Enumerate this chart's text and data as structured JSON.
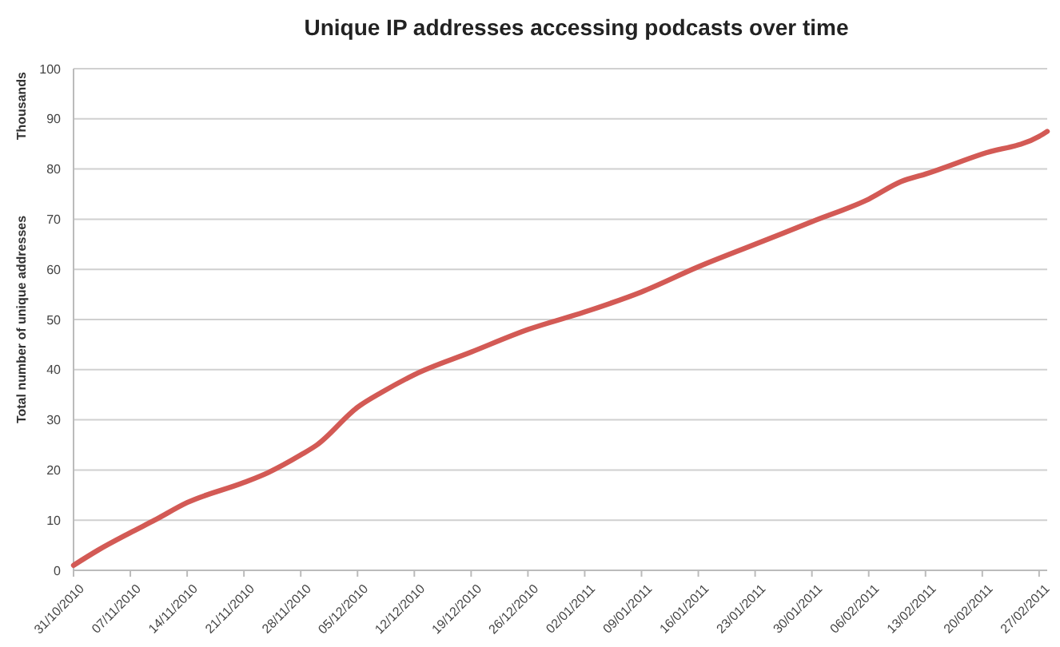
{
  "chart_data": {
    "type": "line",
    "title": "Unique IP addresses accessing podcasts over time",
    "ylabel": "Total number of unique addresses",
    "annotations": [
      "Thousands"
    ],
    "x": [
      "2010-10-31",
      "2010-11-03",
      "2010-11-07",
      "2010-11-10",
      "2010-11-14",
      "2010-11-21",
      "2010-11-24",
      "2010-11-28",
      "2010-11-30",
      "2010-12-05",
      "2010-12-08",
      "2010-12-12",
      "2010-12-19",
      "2010-12-26",
      "2011-01-02",
      "2011-01-09",
      "2011-01-16",
      "2011-01-23",
      "2011-01-30",
      "2011-02-06",
      "2011-02-10",
      "2011-02-13",
      "2011-02-20",
      "2011-02-27",
      "2011-02-28"
    ],
    "series": [
      {
        "color": "#d35a55",
        "values": [
          1,
          4,
          7.5,
          10,
          13.5,
          17.5,
          19.5,
          23,
          25,
          32.5,
          35.5,
          39,
          43.5,
          48,
          51.5,
          55.5,
          60.5,
          65,
          69.5,
          74,
          77.5,
          79,
          83,
          86.5,
          87.5
        ]
      }
    ],
    "xlim": [
      "2010-10-31",
      "2011-02-28"
    ],
    "xticks": [
      {
        "value": "2010-10-31",
        "label": "31/10/2010"
      },
      {
        "value": "2010-11-07",
        "label": "07/11/2010"
      },
      {
        "value": "2010-11-14",
        "label": "14/11/2010"
      },
      {
        "value": "2010-11-21",
        "label": "21/11/2010"
      },
      {
        "value": "2010-11-28",
        "label": "28/11/2010"
      },
      {
        "value": "2010-12-05",
        "label": "05/12/2010"
      },
      {
        "value": "2010-12-12",
        "label": "12/12/2010"
      },
      {
        "value": "2010-12-19",
        "label": "19/12/2010"
      },
      {
        "value": "2010-12-26",
        "label": "26/12/2010"
      },
      {
        "value": "2011-01-02",
        "label": "02/01/2011"
      },
      {
        "value": "2011-01-09",
        "label": "09/01/2011"
      },
      {
        "value": "2011-01-16",
        "label": "16/01/2011"
      },
      {
        "value": "2011-01-23",
        "label": "23/01/2011"
      },
      {
        "value": "2011-01-30",
        "label": "30/01/2011"
      },
      {
        "value": "2011-02-06",
        "label": "06/02/2011"
      },
      {
        "value": "2011-02-13",
        "label": "13/02/2011"
      },
      {
        "value": "2011-02-20",
        "label": "20/02/2011"
      },
      {
        "value": "2011-02-27",
        "label": "27/02/2011"
      }
    ],
    "ylim": [
      0,
      100
    ],
    "yticks": [
      0,
      10,
      20,
      30,
      40,
      50,
      60,
      70,
      80,
      90,
      100
    ],
    "grid": "y",
    "marker": "none",
    "line_style": "solid"
  }
}
